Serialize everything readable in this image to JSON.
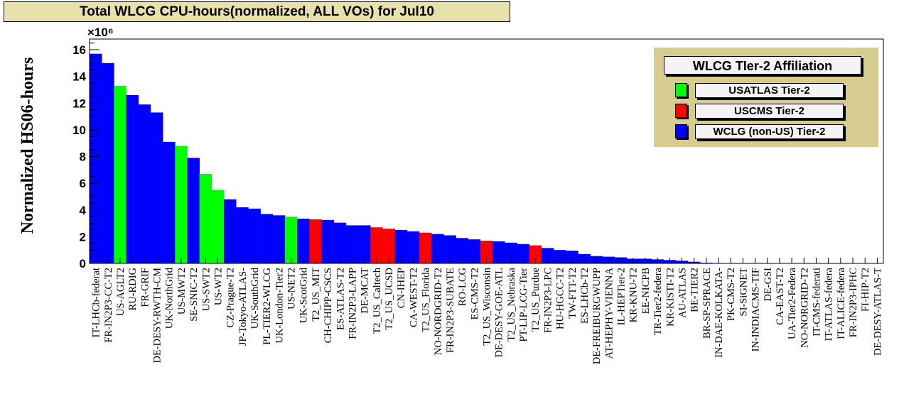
{
  "title": "Total WLCG CPU-hours(normalized, ALL VOs) for Jul10",
  "chart_data": {
    "type": "bar",
    "ylabel": "Normalized HS06-hours",
    "y_exponent": "×10⁶",
    "ylim": [
      0,
      16.8
    ],
    "yticks": [
      "0",
      "2",
      "4",
      "6",
      "8",
      "10",
      "12",
      "14",
      "16"
    ],
    "colors": {
      "USATLAS": "#00ff00",
      "USCMS": "#ff0000",
      "WLCG": "#0000ff"
    },
    "categories": [
      "IT-LHCb-federat",
      "FR-IN2P3-CC-T2",
      "US-AGLT2",
      "RU-RDIG",
      "FR-GRIF",
      "DE-DESY-RWTH-CM",
      "UK-NorthGrid",
      "US-MWT2",
      "SE-SNIC-T2",
      "US-SWT2",
      "US-WT2",
      "CZ-Prague-T2",
      "JP-Tokyo-ATLAS-",
      "UK-SouthGrid",
      "PL-TIER2-WLCG",
      "UK-London-Tier2",
      "US-NET2",
      "UK-ScotGrid",
      "T2_US_MIT",
      "CH-CHIPP-CSCS",
      "ES-ATLAS-T2",
      "FR-IN2P3-LAPP",
      "DE-MCAT",
      "T2_US_Caltech",
      "T2_US_UCSD",
      "CN-IHEP",
      "CA-WEST-T2",
      "T2_US_Florida",
      "NO-NORDGRID-T2",
      "FR-IN2P3-SUBATE",
      "RO-LCG",
      "ES-CMS-T2",
      "T2_US_Wisconsin",
      "DE-DESY-GOE-ATL",
      "T2_US_Nebraska",
      "PT-LIP-LCG-Tier",
      "T2_US_Purdue",
      "FR-IN2P3-LPC",
      "HU-HGCC-T2",
      "TW-FTT-T2",
      "ES-LHCb-T2",
      "DE-FREIBURGWUPP",
      "AT-HEPHY-VIENNA",
      "IL-HEPTier-2",
      "KR-KNU-T2",
      "EE-NICPB",
      "TR-Tier2-federa",
      "KR-KISTI-T2",
      "AU-ATLAS",
      "BE-TIER2",
      "BR-SP-SPRACE",
      "IN-DAE-KOLKATA-",
      "PK-CMS-T2",
      "SI-SiGNET",
      "IN-INDIACMS-TIF",
      "DE-GSI",
      "CA-EAST-T2",
      "UA-Tier2-Federa",
      "NO-NORGRID-T2",
      "IT-CMS-federati",
      "IT-ATLAS-federa",
      "IT-ALICE-federa",
      "FR-IN2P3-IPHC",
      "FI-HIP-T2",
      "DE-DESY-ATLAS-T"
    ],
    "values": [
      15.7,
      15.0,
      13.3,
      12.6,
      11.9,
      11.3,
      9.1,
      8.8,
      7.9,
      6.7,
      5.5,
      4.8,
      4.2,
      4.1,
      3.7,
      3.6,
      3.5,
      3.35,
      3.3,
      3.25,
      3.05,
      2.85,
      2.85,
      2.7,
      2.6,
      2.5,
      2.4,
      2.3,
      2.2,
      2.1,
      1.9,
      1.8,
      1.7,
      1.65,
      1.55,
      1.45,
      1.35,
      1.15,
      1.0,
      0.95,
      0.7,
      0.55,
      0.5,
      0.45,
      0.35,
      0.35,
      0.3,
      0.25,
      0.2,
      0.12,
      0.05,
      0.03,
      0.02,
      0.01,
      0.01,
      0.01,
      0.01,
      0,
      0,
      0,
      0,
      0,
      0,
      0,
      0
    ],
    "groups": [
      "WLCG",
      "WLCG",
      "USATLAS",
      "WLCG",
      "WLCG",
      "WLCG",
      "WLCG",
      "USATLAS",
      "WLCG",
      "USATLAS",
      "USATLAS",
      "WLCG",
      "WLCG",
      "WLCG",
      "WLCG",
      "WLCG",
      "USATLAS",
      "WLCG",
      "USCMS",
      "WLCG",
      "WLCG",
      "WLCG",
      "WLCG",
      "USCMS",
      "USCMS",
      "WLCG",
      "WLCG",
      "USCMS",
      "WLCG",
      "WLCG",
      "WLCG",
      "WLCG",
      "USCMS",
      "WLCG",
      "WLCG",
      "WLCG",
      "USCMS",
      "WLCG",
      "WLCG",
      "WLCG",
      "WLCG",
      "WLCG",
      "WLCG",
      "WLCG",
      "WLCG",
      "WLCG",
      "WLCG",
      "WLCG",
      "WLCG",
      "WLCG",
      "WLCG",
      "WLCG",
      "WLCG",
      "WLCG",
      "WLCG",
      "WLCG",
      "WLCG",
      "WLCG",
      "WLCG",
      "WLCG",
      "WLCG",
      "WLCG",
      "WLCG",
      "WLCG",
      "WLCG"
    ],
    "legend": {
      "title": "WLCG TIer-2 Affiliation",
      "entries": [
        {
          "name": "USATLAS Tier-2",
          "group": "USATLAS"
        },
        {
          "name": "USCMS Tier-2",
          "group": "USCMS"
        },
        {
          "name": "WCLG (non-US) Tier-2",
          "group": "WLCG"
        }
      ]
    }
  }
}
